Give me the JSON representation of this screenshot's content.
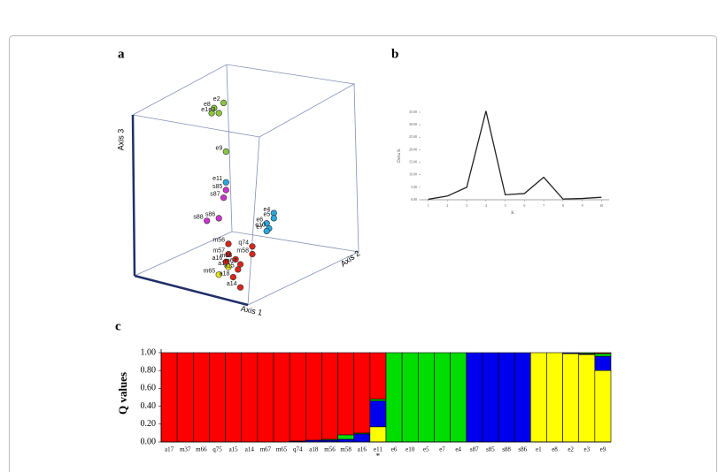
{
  "chart_data": [
    {
      "type": "scatter",
      "label": "a",
      "axis_labels": [
        "Axis 1",
        "Axis 2",
        "Axis 3"
      ],
      "xlim": [
        0,
        1
      ],
      "ylim": [
        0,
        1
      ],
      "points": [
        {
          "name": "e1",
          "color": "#8cc63e",
          "x": 0.33,
          "y": 0.8
        },
        {
          "name": "e8",
          "color": "#8cc63e",
          "x": 0.34,
          "y": 0.82
        },
        {
          "name": "e2",
          "color": "#8cc63e",
          "x": 0.38,
          "y": 0.84
        },
        {
          "name": "e3",
          "color": "#8cc63e",
          "x": 0.36,
          "y": 0.8
        },
        {
          "name": "e9",
          "color": "#8cc63e",
          "x": 0.39,
          "y": 0.65
        },
        {
          "name": "e11",
          "color": "#29a8e0",
          "x": 0.39,
          "y": 0.53
        },
        {
          "name": "e4",
          "color": "#29a8e0",
          "x": 0.59,
          "y": 0.41
        },
        {
          "name": "e5",
          "color": "#29a8e0",
          "x": 0.59,
          "y": 0.39
        },
        {
          "name": "e6",
          "color": "#29a8e0",
          "x": 0.56,
          "y": 0.37
        },
        {
          "name": "e10",
          "color": "#29a8e0",
          "x": 0.57,
          "y": 0.35
        },
        {
          "name": "e7",
          "color": "#29a8e0",
          "x": 0.56,
          "y": 0.34
        },
        {
          "name": "s85",
          "color": "#cc33cc",
          "x": 0.39,
          "y": 0.5
        },
        {
          "name": "s87",
          "color": "#cc33cc",
          "x": 0.38,
          "y": 0.47
        },
        {
          "name": "s86",
          "color": "#cc33cc",
          "x": 0.36,
          "y": 0.39
        },
        {
          "name": "s88",
          "color": "#cc33cc",
          "x": 0.31,
          "y": 0.38
        },
        {
          "name": "m56",
          "color": "#d9261c",
          "x": 0.4,
          "y": 0.29
        },
        {
          "name": "q74",
          "color": "#d9261c",
          "x": 0.5,
          "y": 0.28
        },
        {
          "name": "m58",
          "color": "#d9261c",
          "x": 0.5,
          "y": 0.25
        },
        {
          "name": "m57",
          "color": "#d9261c",
          "x": 0.4,
          "y": 0.25
        },
        {
          "name": "m66",
          "color": "#d9261c",
          "x": 0.43,
          "y": 0.23
        },
        {
          "name": "a16",
          "color": "#d9261c",
          "x": 0.39,
          "y": 0.22
        },
        {
          "name": "m67",
          "color": "#d9261c",
          "x": 0.45,
          "y": 0.21
        },
        {
          "name": "a1",
          "color": "#e6e619",
          "x": 0.4,
          "y": 0.2
        },
        {
          "name": "a15",
          "color": "#d9261c",
          "x": 0.44,
          "y": 0.19
        },
        {
          "name": "m65",
          "color": "#e6e619",
          "x": 0.36,
          "y": 0.17
        },
        {
          "name": "a18",
          "color": "#d9261c",
          "x": 0.42,
          "y": 0.16
        },
        {
          "name": "a14",
          "color": "#d9261c",
          "x": 0.45,
          "y": 0.12
        }
      ]
    },
    {
      "type": "line",
      "label": "b",
      "x_label": "K",
      "y_label": "Delta K",
      "color": "#222222",
      "x": [
        1,
        2,
        3,
        4,
        5,
        6,
        7,
        8,
        9,
        10
      ],
      "values": [
        0.2,
        1.5,
        5,
        35.5,
        2,
        2.5,
        9,
        0.3,
        0.5,
        1
      ],
      "xlim": [
        0.6,
        10.4
      ],
      "xticks": [
        1,
        2,
        3,
        4,
        5,
        6,
        7,
        8,
        9,
        10
      ],
      "ylim": [
        0,
        35
      ],
      "yticks": [
        {
          "value": 0,
          "label": "0.00"
        },
        {
          "value": 5,
          "label": "5.00"
        },
        {
          "value": 10,
          "label": "10.00"
        },
        {
          "value": 15,
          "label": "15.00"
        },
        {
          "value": 20,
          "label": "20.00"
        },
        {
          "value": 25,
          "label": "25.00"
        },
        {
          "value": 30,
          "label": "30.00"
        },
        {
          "value": 35,
          "label": "35.00"
        }
      ]
    },
    {
      "type": "stacked_bar",
      "label": "c",
      "y_label": "Q values",
      "categories": [
        "a17",
        "m37",
        "m66",
        "q75",
        "a15",
        "a14",
        "m67",
        "m65",
        "q74",
        "a18",
        "m56",
        "m58",
        "a16",
        "e11",
        "e6",
        "e10",
        "e5",
        "e7",
        "e4",
        "s87",
        "s85",
        "s88",
        "s86",
        "e1",
        "e8",
        "e2",
        "e3",
        "e9"
      ],
      "series": [
        {
          "name": "yellow",
          "color": "#ffff00",
          "values": [
            0,
            0,
            0,
            0,
            0,
            0,
            0,
            0,
            0,
            0,
            0,
            0,
            0,
            0.17,
            0,
            0,
            0,
            0,
            0,
            0,
            0,
            0,
            0,
            1,
            1,
            0.99,
            0.98,
            0.8
          ]
        },
        {
          "name": "blue",
          "color": "#0000ee",
          "values": [
            0,
            0,
            0,
            0,
            0,
            0,
            0,
            0,
            0.01,
            0.02,
            0.02,
            0.03,
            0.09,
            0.29,
            0,
            0,
            0,
            0,
            0,
            1,
            1,
            1,
            1,
            0,
            0,
            0.01,
            0.01,
            0.16
          ]
        },
        {
          "name": "green",
          "color": "#00dd00",
          "values": [
            0,
            0,
            0,
            0,
            0,
            0,
            0,
            0,
            0,
            0,
            0.01,
            0.05,
            0.01,
            0.02,
            1,
            1,
            1,
            1,
            1,
            0,
            0,
            0,
            0,
            0,
            0,
            0,
            0.01,
            0.03
          ]
        },
        {
          "name": "red",
          "color": "#ff0000",
          "values": [
            1,
            1,
            1,
            1,
            1,
            1,
            1,
            1,
            0.99,
            0.98,
            0.97,
            0.92,
            0.9,
            0.52,
            0,
            0,
            0,
            0,
            0,
            0,
            0,
            0,
            0,
            0,
            0,
            0,
            0,
            0.01
          ]
        }
      ],
      "ylim": [
        0,
        1
      ],
      "yticks": [
        {
          "value": 0,
          "label": "0.00"
        },
        {
          "value": 0.2,
          "label": "0.20"
        },
        {
          "value": 0.4,
          "label": "0.40"
        },
        {
          "value": 0.6,
          "label": "0.60"
        },
        {
          "value": 0.8,
          "label": "0.80"
        },
        {
          "value": 1,
          "label": "1.00"
        }
      ],
      "annotations": [
        {
          "text": "*",
          "category": "e11"
        }
      ]
    }
  ]
}
